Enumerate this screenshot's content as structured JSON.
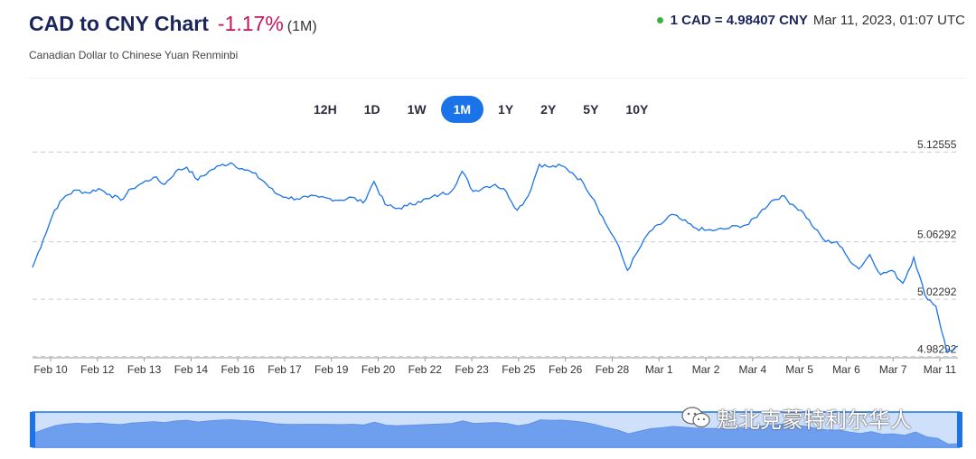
{
  "header": {
    "title": "CAD to CNY Chart",
    "change": "-1.17%",
    "period": "(1M)",
    "subtitle": "Canadian Dollar to Chinese Yuan Renminbi",
    "rate": "1 CAD = 4.98407 CNY",
    "timestamp": "Mar 11, 2023, 01:07 UTC",
    "status_color": "#3cb043"
  },
  "tabs": [
    {
      "label": "12H",
      "active": false
    },
    {
      "label": "1D",
      "active": false
    },
    {
      "label": "1W",
      "active": false
    },
    {
      "label": "1M",
      "active": true
    },
    {
      "label": "1Y",
      "active": false
    },
    {
      "label": "2Y",
      "active": false
    },
    {
      "label": "5Y",
      "active": false
    },
    {
      "label": "10Y",
      "active": false
    }
  ],
  "watermark": {
    "text": "魁北克蒙特利尔华人",
    "icon": "wechat-icon"
  },
  "chart_data": {
    "type": "line",
    "title": "",
    "xlabel": "",
    "ylabel": "",
    "line_color": "#1a73e8",
    "grid": true,
    "ylim": [
      4.982,
      5.132
    ],
    "y_ticks": [
      {
        "value": 5.12555,
        "label": "5.12555"
      },
      {
        "value": 5.06292,
        "label": "5.06292"
      },
      {
        "value": 5.02292,
        "label": "5.02292"
      },
      {
        "value": 4.98292,
        "label": "4.98292"
      }
    ],
    "x_ticks": [
      "Feb 10",
      "Feb 12",
      "Feb 13",
      "Feb 14",
      "Feb 16",
      "Feb 17",
      "Feb 19",
      "Feb 20",
      "Feb 22",
      "Feb 23",
      "Feb 25",
      "Feb 26",
      "Feb 28",
      "Mar 1",
      "Mar 2",
      "Mar 4",
      "Mar 5",
      "Mar 6",
      "Mar 7",
      "Mar 11"
    ],
    "series": [
      {
        "values": [
          5.045,
          5.065,
          5.085,
          5.095,
          5.099,
          5.097,
          5.1,
          5.096,
          5.092,
          5.1,
          5.104,
          5.108,
          5.103,
          5.112,
          5.115,
          5.106,
          5.112,
          5.116,
          5.118,
          5.114,
          5.111,
          5.105,
          5.097,
          5.094,
          5.093,
          5.094,
          5.094,
          5.093,
          5.092,
          5.094,
          5.09,
          5.105,
          5.089,
          5.086,
          5.088,
          5.091,
          5.093,
          5.096,
          5.098,
          5.112,
          5.098,
          5.101,
          5.103,
          5.098,
          5.085,
          5.095,
          5.117,
          5.115,
          5.116,
          5.111,
          5.104,
          5.092,
          5.076,
          5.063,
          5.043,
          5.057,
          5.07,
          5.075,
          5.082,
          5.078,
          5.073,
          5.071,
          5.071,
          5.072,
          5.074,
          5.075,
          5.083,
          5.091,
          5.095,
          5.089,
          5.083,
          5.072,
          5.063,
          5.063,
          5.052,
          5.044,
          5.054,
          5.04,
          5.043,
          5.034,
          5.052,
          5.026,
          5.018,
          4.986,
          4.99
        ]
      }
    ]
  }
}
